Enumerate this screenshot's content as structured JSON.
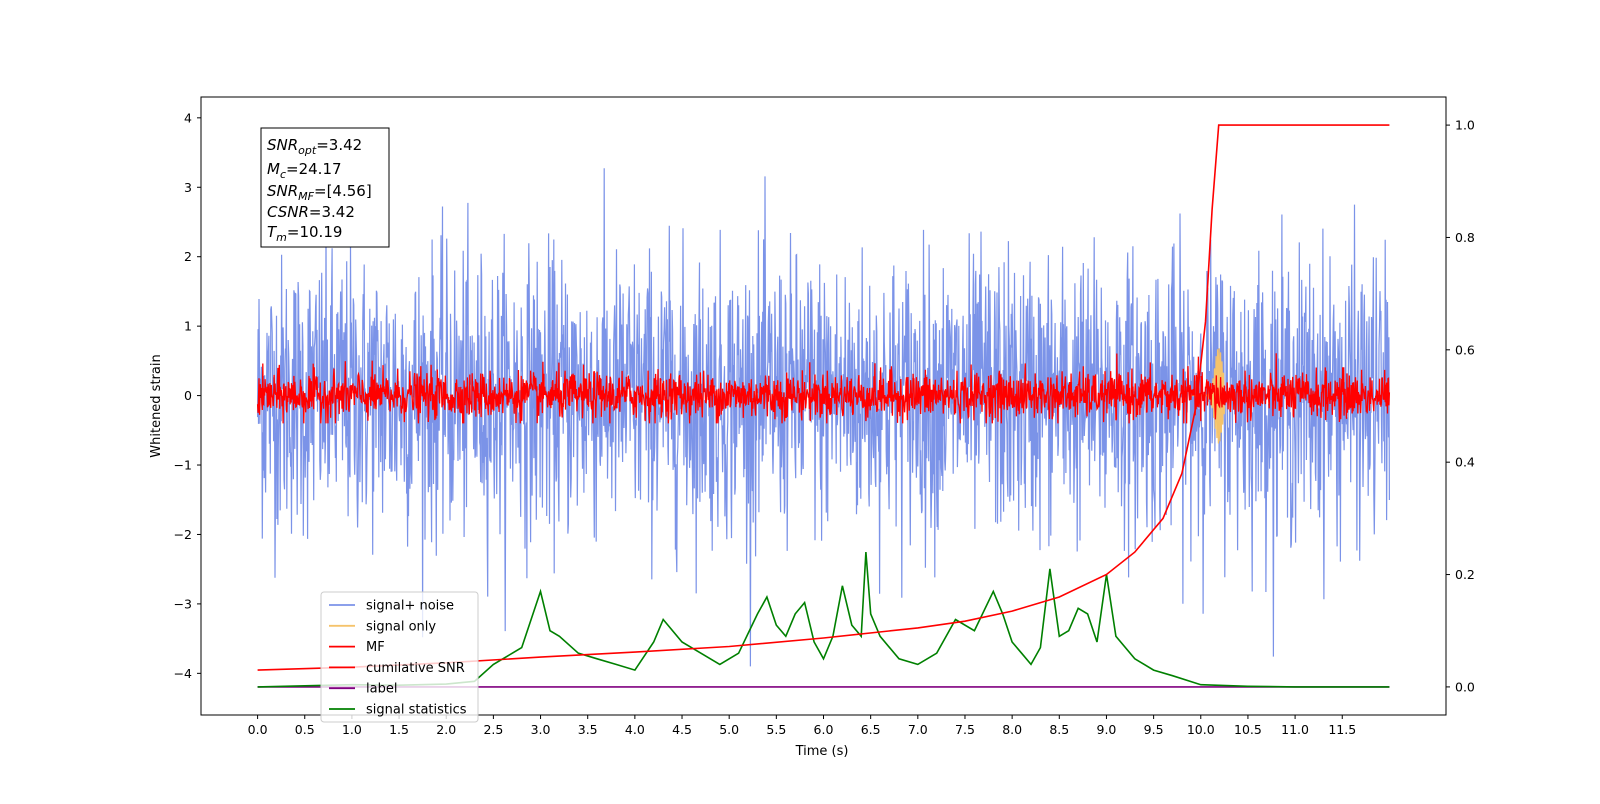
{
  "chart_data": {
    "type": "line",
    "xlabel": "Time (s)",
    "ylabel": "Whitened strain",
    "xlim": [
      -0.6,
      12.6
    ],
    "ylim": [
      -4.6,
      4.3
    ],
    "ylim_right": [
      -0.05,
      1.05
    ],
    "x_ticks": [
      "0.0",
      "0.5",
      "1.0",
      "1.5",
      "2.0",
      "2.5",
      "3.0",
      "3.5",
      "4.0",
      "4.5",
      "5.0",
      "5.5",
      "6.0",
      "6.5",
      "7.0",
      "7.5",
      "8.0",
      "8.5",
      "9.0",
      "9.5",
      "10.0",
      "10.5",
      "11.0",
      "11.5"
    ],
    "y_ticks_left": [
      "4",
      "3",
      "2",
      "1",
      "0",
      "−1",
      "−2",
      "−3",
      "−4"
    ],
    "y_ticks_right": [
      "1.0",
      "0.8",
      "0.6",
      "0.4",
      "0.2",
      "0.0"
    ],
    "legend_position": "lower-left",
    "grid": false,
    "annotation": {
      "snr_opt": "SNR",
      "snr_opt_sub": "opt",
      "snr_opt_val": "=3.42",
      "mc": "M",
      "mc_sub": "c",
      "mc_val": "=24.17",
      "snr_mf": "SNR",
      "snr_mf_sub": "MF",
      "snr_mf_val": "=[4.56]",
      "csnr": "CSNR",
      "csnr_val": "=3.42",
      "tm": "T",
      "tm_sub": "m",
      "tm_val": "=10.19"
    },
    "series": [
      {
        "name": "signal+ noise",
        "color": "#7b93e8",
        "axis": "left",
        "description": "white noise, std ~1.0, t 0–12"
      },
      {
        "name": "signal only",
        "color": "#f5c36b",
        "axis": "left",
        "description": "chirp near t=10.19, peak ~±0.7"
      },
      {
        "name": "MF",
        "color": "#ff0000",
        "axis": "left",
        "description": "matched-filter output, std ~0.2, t 0–12"
      },
      {
        "name": "cumilative SNR",
        "color": "#ff0000",
        "axis": "right",
        "x": [
          0.0,
          1.0,
          2.0,
          3.0,
          4.0,
          5.0,
          6.0,
          7.0,
          7.5,
          8.0,
          8.5,
          9.0,
          9.3,
          9.6,
          9.8,
          9.95,
          10.05,
          10.12,
          10.19,
          12.0
        ],
        "y": [
          0.03,
          0.035,
          0.043,
          0.053,
          0.062,
          0.072,
          0.087,
          0.105,
          0.117,
          0.135,
          0.16,
          0.2,
          0.24,
          0.3,
          0.38,
          0.5,
          0.65,
          0.85,
          1.0,
          1.0
        ]
      },
      {
        "name": "label",
        "color": "#800080",
        "axis": "right",
        "x": [
          0.0,
          12.0
        ],
        "y": [
          0.0,
          0.0
        ]
      },
      {
        "name": "signal statistics",
        "color": "#008000",
        "axis": "right",
        "x": [
          0.0,
          0.5,
          1.0,
          1.5,
          2.0,
          2.3,
          2.5,
          2.7,
          2.8,
          2.9,
          3.0,
          3.1,
          3.2,
          3.4,
          3.6,
          3.8,
          4.0,
          4.2,
          4.3,
          4.5,
          4.7,
          4.9,
          5.1,
          5.3,
          5.4,
          5.5,
          5.6,
          5.7,
          5.8,
          5.9,
          6.0,
          6.1,
          6.2,
          6.3,
          6.4,
          6.45,
          6.5,
          6.6,
          6.8,
          7.0,
          7.2,
          7.4,
          7.6,
          7.8,
          7.9,
          8.0,
          8.1,
          8.2,
          8.3,
          8.4,
          8.5,
          8.6,
          8.7,
          8.8,
          8.9,
          9.0,
          9.1,
          9.3,
          9.5,
          9.7,
          10.0,
          10.5,
          11.0,
          12.0
        ],
        "y": [
          0.0,
          0.002,
          0.004,
          0.003,
          0.005,
          0.01,
          0.04,
          0.06,
          0.07,
          0.12,
          0.17,
          0.1,
          0.09,
          0.06,
          0.05,
          0.04,
          0.03,
          0.08,
          0.12,
          0.08,
          0.06,
          0.04,
          0.06,
          0.13,
          0.16,
          0.11,
          0.09,
          0.13,
          0.15,
          0.08,
          0.05,
          0.09,
          0.18,
          0.11,
          0.09,
          0.24,
          0.13,
          0.09,
          0.05,
          0.04,
          0.06,
          0.12,
          0.1,
          0.17,
          0.13,
          0.08,
          0.06,
          0.04,
          0.07,
          0.21,
          0.09,
          0.1,
          0.14,
          0.13,
          0.08,
          0.2,
          0.09,
          0.05,
          0.03,
          0.02,
          0.004,
          0.001,
          0.0,
          0.0
        ]
      }
    ]
  }
}
